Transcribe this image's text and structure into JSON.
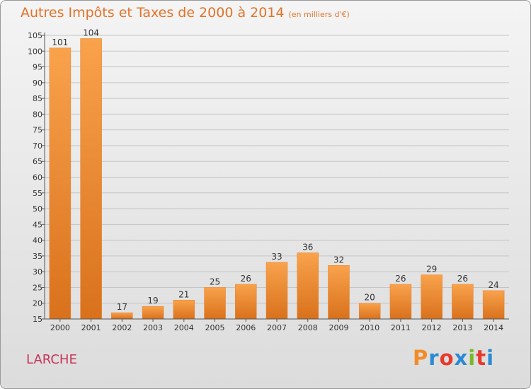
{
  "chart_data": {
    "type": "bar",
    "title": "Autres Impôts et Taxes de 2000 à 2014",
    "subtitle": "(en milliers d'€)",
    "categories": [
      "2000",
      "2001",
      "2002",
      "2003",
      "2004",
      "2005",
      "2006",
      "2007",
      "2008",
      "2009",
      "2010",
      "2011",
      "2012",
      "2013",
      "2014"
    ],
    "values": [
      101,
      104,
      17,
      19,
      21,
      25,
      26,
      33,
      36,
      32,
      20,
      26,
      29,
      26,
      24
    ],
    "ylim": [
      15,
      105
    ],
    "yticks": [
      15,
      20,
      25,
      30,
      35,
      40,
      45,
      50,
      55,
      60,
      65,
      70,
      75,
      80,
      85,
      90,
      95,
      100,
      105
    ],
    "grid": true,
    "bar_color": "#f28c28",
    "text_color": "#e0742a"
  },
  "footer": {
    "town": "LARCHE",
    "logo": "Proxiti",
    "logo_colors": [
      "#f28c28",
      "#2a8ad4",
      "#e8392b",
      "#2a8ad4",
      "#7ab82a",
      "#e8392b",
      "#2a8ad4"
    ]
  }
}
